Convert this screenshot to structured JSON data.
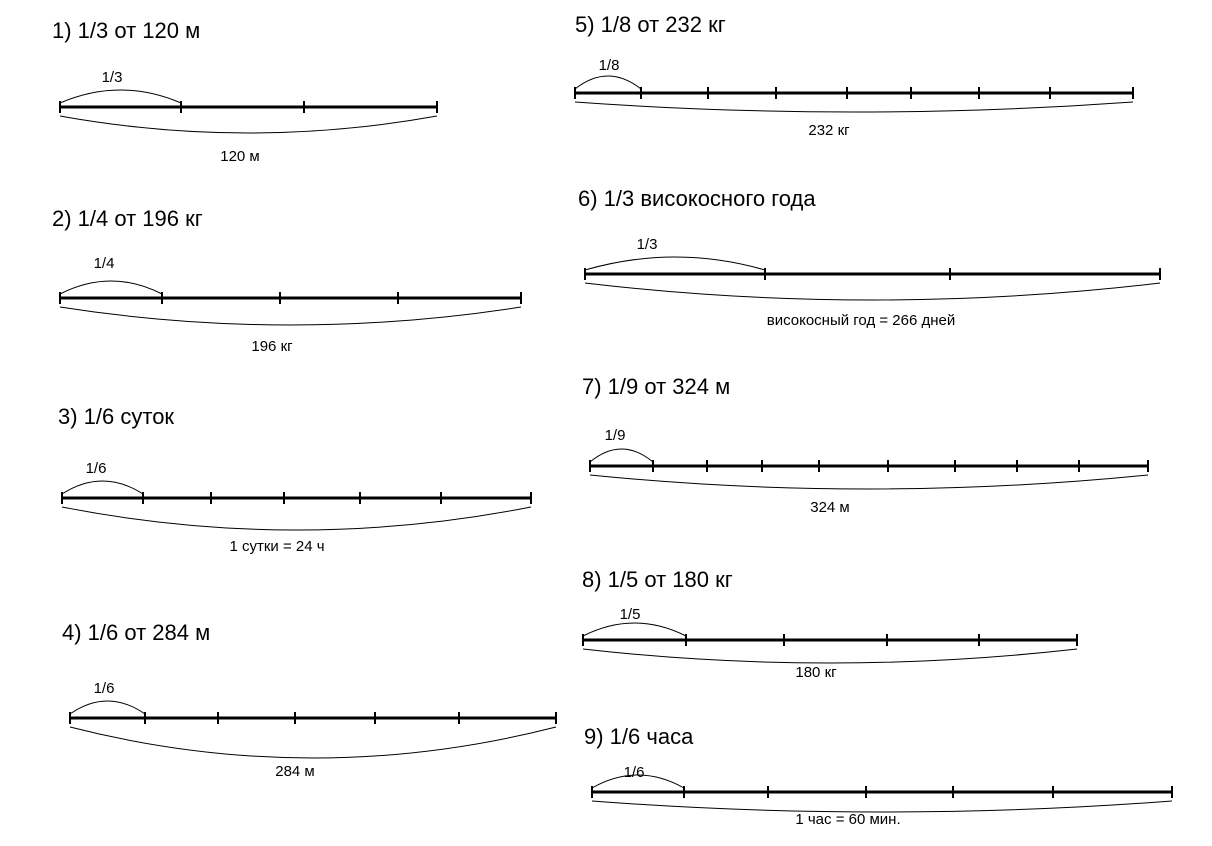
{
  "problems": [
    {
      "title": "1) 1/3 от 120 м",
      "part_label": "1/3",
      "total_label": "120 м"
    },
    {
      "title": "2) 1/4 от 196 кг",
      "part_label": "1/4",
      "total_label": "196 кг"
    },
    {
      "title": "3) 1/6 суток",
      "part_label": "1/6",
      "total_label": "1 сутки = 24 ч"
    },
    {
      "title": "4) 1/6 от 284 м",
      "part_label": "1/6",
      "total_label": "284 м"
    },
    {
      "title": "5) 1/8 от 232 кг",
      "part_label": "1/8",
      "total_label": "232 кг"
    },
    {
      "title": "6) 1/3 високосного года",
      "part_label": "1/3",
      "total_label": "високосный год = 266 дней"
    },
    {
      "title": "7) 1/9 от 324 м",
      "part_label": "1/9",
      "total_label": "324 м"
    },
    {
      "title": "8) 1/5 от 180 кг",
      "part_label": "1/5",
      "total_label": "180 кг"
    },
    {
      "title": "9) 1/6 часа",
      "part_label": "1/6",
      "total_label": "1 час = 60 мин."
    }
  ]
}
